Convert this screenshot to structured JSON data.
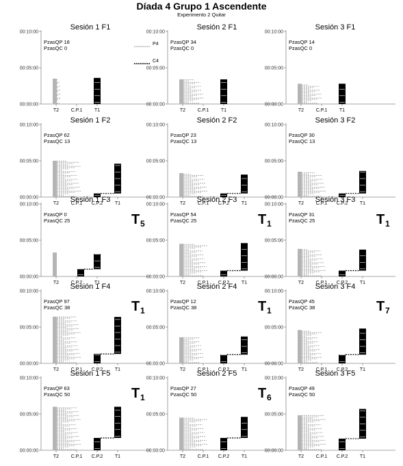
{
  "title": "Díada 4 Grupo 1 Ascendente",
  "subtitle": "Experimento 2 Quitar",
  "colors": {
    "P4": "#b4b4b4",
    "C4": "#000000",
    "axis": "#888888"
  },
  "chart_data": {
    "type": "scatter",
    "yticks": [
      "00:00:00",
      "00:05:00",
      "00:10:00"
    ],
    "ylim_minutes": [
      0,
      10
    ],
    "series": [
      {
        "name": "P4",
        "style": "dotted-gray"
      },
      {
        "name": "C4",
        "style": "dotted-black"
      }
    ],
    "panels": [
      {
        "id": "1-1",
        "title": "Sesión 1 F1",
        "stat1": "PzasQP 18",
        "stat2": "PzasQC 0",
        "xlabels": [
          "T2",
          "C.P.1",
          "T1"
        ],
        "marker": "",
        "marker_sub": "",
        "legend": true,
        "p4": [
          {
            "x": 0,
            "y1": 0,
            "y2": 3.5,
            "w": 0.4
          }
        ],
        "c4": [
          {
            "x": 2,
            "y1": 0,
            "y2": 3.6
          }
        ]
      },
      {
        "id": "1-2",
        "title": "Sesión 2 F1",
        "stat1": "PzasQP 34",
        "stat2": "PzasQC 0",
        "xlabels": [
          "T2",
          "C.P.1",
          "T1"
        ],
        "marker": "",
        "marker_sub": "",
        "legend": false,
        "p4": [
          {
            "x": 0,
            "y1": 0,
            "y2": 3.4,
            "w": 1.2
          }
        ],
        "c4": [
          {
            "x": 2,
            "y1": 0,
            "y2": 3.4
          }
        ]
      },
      {
        "id": "1-3",
        "title": "Sesión 3 F1",
        "stat1": "PzasQP 14",
        "stat2": "PzasQC 0",
        "xlabels": [
          "T2",
          "C.P.1",
          "T1"
        ],
        "marker": "",
        "marker_sub": "",
        "legend": false,
        "p4": [
          {
            "x": 0,
            "y1": 0,
            "y2": 2.8,
            "w": 1.2
          }
        ],
        "c4": [
          {
            "x": 2,
            "y1": 0,
            "y2": 2.8
          }
        ]
      },
      {
        "id": "2-1",
        "title": "Sesión 1 F2",
        "stat1": "PzasQP 62",
        "stat2": "PzasQC 13",
        "xlabels": [
          "T2",
          "C.P.1",
          "C.P.2",
          "T1"
        ],
        "marker": "",
        "marker_sub": "",
        "legend": false,
        "p4": [
          {
            "x": 0,
            "y1": 0,
            "y2": 5.0,
            "w": 1.4
          }
        ],
        "c4": [
          {
            "x": 2,
            "y1": 0,
            "y2": 0.5
          },
          {
            "x": 3,
            "y1": 0.5,
            "y2": 4.6
          }
        ]
      },
      {
        "id": "2-2",
        "title": "Sesión 2 F2",
        "stat1": "PzasQP 23",
        "stat2": "PzasQC 13",
        "xlabels": [
          "T2",
          "C.P.1",
          "C.P.2",
          "T1"
        ],
        "marker": "",
        "marker_sub": "",
        "legend": false,
        "p4": [
          {
            "x": 0,
            "y1": 0,
            "y2": 3.3,
            "w": 1.4
          }
        ],
        "c4": [
          {
            "x": 2,
            "y1": 0,
            "y2": 0.5
          },
          {
            "x": 3,
            "y1": 0.5,
            "y2": 3.1
          }
        ]
      },
      {
        "id": "2-3",
        "title": "Sesión 3 F2",
        "stat1": "PzasQP 30",
        "stat2": "PzasQC 13",
        "xlabels": [
          "T2",
          "C.P.1",
          "C.P.2",
          "T1"
        ],
        "marker": "",
        "marker_sub": "",
        "legend": false,
        "p4": [
          {
            "x": 0,
            "y1": 0,
            "y2": 3.5,
            "w": 1.4
          }
        ],
        "c4": [
          {
            "x": 2,
            "y1": 0,
            "y2": 0.5
          },
          {
            "x": 3,
            "y1": 0.5,
            "y2": 3.6
          }
        ]
      },
      {
        "id": "3-1",
        "title": "Sesión 1 F3",
        "stat1": "PzasQP 0",
        "stat2": "PzasQC 25",
        "xlabels": [
          "T2",
          "C.P.2",
          "T1"
        ],
        "marker": "T",
        "marker_sub": "5",
        "legend": false,
        "p4": [
          {
            "x": 0,
            "y1": 0,
            "y2": 3.3,
            "w": 0.2
          }
        ],
        "c4": [
          {
            "x": 1.2,
            "y1": 0,
            "y2": 1.0
          },
          {
            "x": 2,
            "y1": 1.0,
            "y2": 3.1
          }
        ]
      },
      {
        "id": "3-2",
        "title": "Sesión 2 F3",
        "stat1": "PzasQP 54",
        "stat2": "PzasQC 25",
        "xlabels": [
          "T2",
          "C.P.1",
          "C.P.2",
          "T1"
        ],
        "marker": "T",
        "marker_sub": "1",
        "legend": false,
        "p4": [
          {
            "x": 0,
            "y1": 0,
            "y2": 4.5,
            "w": 1.4
          }
        ],
        "c4": [
          {
            "x": 2,
            "y1": 0,
            "y2": 0.8
          },
          {
            "x": 3,
            "y1": 0.8,
            "y2": 4.6
          }
        ]
      },
      {
        "id": "3-3",
        "title": "Sesión 3 F3",
        "stat1": "PzasQP 31",
        "stat2": "PzasQC 25",
        "xlabels": [
          "T2",
          "C.P.1",
          "C.P.2",
          "T1"
        ],
        "marker": "T",
        "marker_sub": "1",
        "legend": false,
        "p4": [
          {
            "x": 0,
            "y1": 0,
            "y2": 3.8,
            "w": 1.4
          }
        ],
        "c4": [
          {
            "x": 2,
            "y1": 0,
            "y2": 0.8
          },
          {
            "x": 3,
            "y1": 0.8,
            "y2": 3.7
          }
        ]
      },
      {
        "id": "4-1",
        "title": "Sesión 1 F4",
        "stat1": "PzasQP 97",
        "stat2": "PzasQC 38",
        "xlabels": [
          "T2",
          "C.P.1",
          "C.P.2",
          "T1"
        ],
        "marker": "T",
        "marker_sub": "1",
        "legend": false,
        "p4": [
          {
            "x": 0,
            "y1": 0,
            "y2": 6.4,
            "w": 1.4
          }
        ],
        "c4": [
          {
            "x": 2,
            "y1": 0,
            "y2": 1.3
          },
          {
            "x": 3,
            "y1": 1.3,
            "y2": 6.4
          }
        ]
      },
      {
        "id": "4-2",
        "title": "Sesión 2 F4",
        "stat1": "PzasQP 12",
        "stat2": "PzasQC 38",
        "xlabels": [
          "T2",
          "C.P.1",
          "C.P.2",
          "T1"
        ],
        "marker": "T",
        "marker_sub": "1",
        "legend": false,
        "p4": [
          {
            "x": 0,
            "y1": 0,
            "y2": 3.6,
            "w": 1.2
          }
        ],
        "c4": [
          {
            "x": 2,
            "y1": 0,
            "y2": 1.2
          },
          {
            "x": 3,
            "y1": 1.2,
            "y2": 3.7
          }
        ]
      },
      {
        "id": "4-3",
        "title": "Sesión 3 F4",
        "stat1": "PzasQP 45",
        "stat2": "PzasQC 38",
        "xlabels": [
          "T2",
          "C.P.1",
          "C.P.2",
          "T1"
        ],
        "marker": "T",
        "marker_sub": "7",
        "legend": false,
        "p4": [
          {
            "x": 0,
            "y1": 0,
            "y2": 4.6,
            "w": 1.2
          }
        ],
        "c4": [
          {
            "x": 2,
            "y1": 0,
            "y2": 1.2
          },
          {
            "x": 3,
            "y1": 1.2,
            "y2": 4.8
          }
        ]
      },
      {
        "id": "5-1",
        "title": "Sesión 1 F5",
        "stat1": "PzasQP 63",
        "stat2": "PzasQC 50",
        "xlabels": [
          "T2",
          "C.P.1",
          "C.P.2",
          "T1"
        ],
        "marker": "T",
        "marker_sub": "1",
        "legend": false,
        "p4": [
          {
            "x": 0,
            "y1": 0,
            "y2": 6.0,
            "w": 1.4
          }
        ],
        "c4": [
          {
            "x": 2,
            "y1": 0,
            "y2": 1.7
          },
          {
            "x": 3,
            "y1": 1.7,
            "y2": 6.0
          }
        ]
      },
      {
        "id": "5-2",
        "title": "Sesión 2 F5",
        "stat1": "PzasQP 27",
        "stat2": "PzasQC 50",
        "xlabels": [
          "T2",
          "C.P.1",
          "C.P.2",
          "T1"
        ],
        "marker": "T",
        "marker_sub": "6",
        "legend": false,
        "p4": [
          {
            "x": 0,
            "y1": 0,
            "y2": 4.5,
            "w": 1.4
          }
        ],
        "c4": [
          {
            "x": 2,
            "y1": 0,
            "y2": 1.7
          },
          {
            "x": 3,
            "y1": 1.7,
            "y2": 4.6
          }
        ]
      },
      {
        "id": "5-3",
        "title": "Sesión 3 F5",
        "stat1": "PzasQP 49",
        "stat2": "PzasQC 50",
        "xlabels": [
          "T2",
          "C.P.1",
          "C.P.2",
          "T1"
        ],
        "marker": "",
        "marker_sub": "",
        "legend": false,
        "p4": [
          {
            "x": 0,
            "y1": 0,
            "y2": 4.8,
            "w": 1.4
          }
        ],
        "c4": [
          {
            "x": 2,
            "y1": 0,
            "y2": 1.6
          },
          {
            "x": 3,
            "y1": 1.6,
            "y2": 5.7
          }
        ]
      }
    ]
  }
}
